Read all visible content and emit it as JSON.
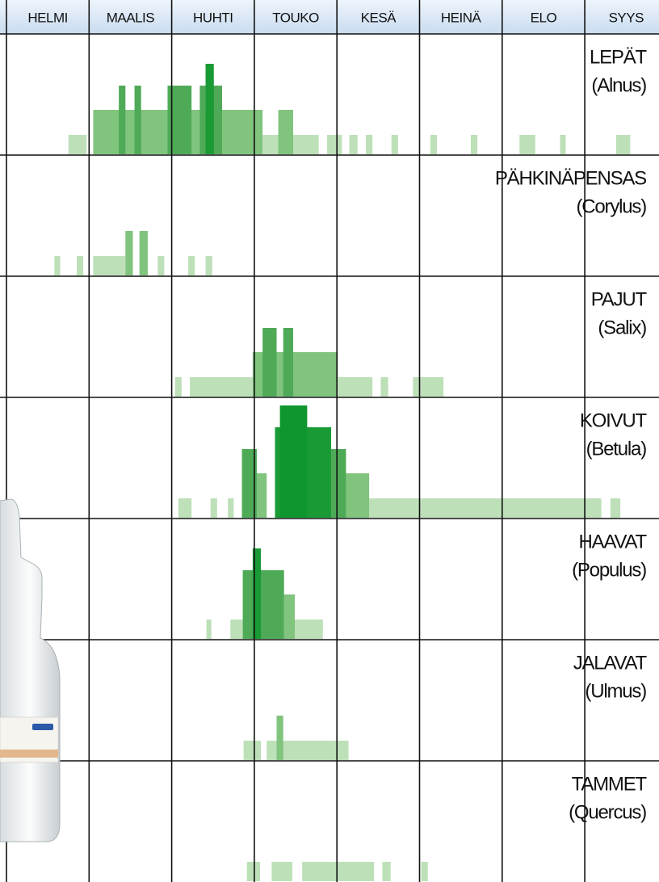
{
  "chart_data": {
    "type": "pollen-calendar",
    "categories": [
      "HELMI",
      "MAALIS",
      "HUHTI",
      "TOUKO",
      "KESÄ",
      "HEINÄ",
      "ELO",
      "SYYS"
    ],
    "level_colors": [
      "#bde0b8",
      "#80c47e",
      "#4faa57",
      "#1a9a35",
      "#10962e"
    ],
    "series": [
      {
        "name": "LEPÄT",
        "latin": "(Alnus)",
        "blocks": [
          {
            "start": 0.75,
            "end": 0.97,
            "level": 1
          },
          {
            "start": 1.05,
            "end": 3.1,
            "level": 2
          },
          {
            "start": 1.36,
            "end": 1.44,
            "level": 3
          },
          {
            "start": 1.55,
            "end": 1.63,
            "level": 3
          },
          {
            "start": 1.95,
            "end": 2.24,
            "level": 3
          },
          {
            "start": 2.34,
            "end": 2.61,
            "level": 3
          },
          {
            "start": 2.41,
            "end": 2.51,
            "level": 4
          },
          {
            "start": 3.1,
            "end": 3.49,
            "level": 1
          },
          {
            "start": 3.29,
            "end": 3.47,
            "level": 2
          },
          {
            "start": 3.49,
            "end": 3.78,
            "level": 1
          },
          {
            "start": 3.88,
            "end": 4.06,
            "level": 1
          },
          {
            "start": 4.15,
            "end": 4.25,
            "level": 1
          },
          {
            "start": 4.35,
            "end": 4.43,
            "level": 1
          },
          {
            "start": 4.66,
            "end": 4.74,
            "level": 1
          },
          {
            "start": 5.13,
            "end": 5.21,
            "level": 1
          },
          {
            "start": 5.62,
            "end": 5.7,
            "level": 1
          },
          {
            "start": 6.21,
            "end": 6.4,
            "level": 1
          },
          {
            "start": 6.7,
            "end": 6.77,
            "level": 1
          },
          {
            "start": 7.38,
            "end": 7.55,
            "level": 1
          }
        ]
      },
      {
        "name": "PÄHKINÄPENSAS",
        "latin": "(Corylus)",
        "blocks": [
          {
            "start": 0.58,
            "end": 0.65,
            "level": 1
          },
          {
            "start": 0.85,
            "end": 0.93,
            "level": 1
          },
          {
            "start": 1.05,
            "end": 1.44,
            "level": 1
          },
          {
            "start": 1.44,
            "end": 1.53,
            "level": 2
          },
          {
            "start": 1.61,
            "end": 1.71,
            "level": 2
          },
          {
            "start": 1.83,
            "end": 1.91,
            "level": 1
          },
          {
            "start": 2.2,
            "end": 2.28,
            "level": 1
          },
          {
            "start": 2.41,
            "end": 2.49,
            "level": 1
          }
        ]
      },
      {
        "name": "PAJUT",
        "latin": "(Salix)",
        "blocks": [
          {
            "start": 2.04,
            "end": 2.12,
            "level": 1
          },
          {
            "start": 2.22,
            "end": 2.98,
            "level": 1
          },
          {
            "start": 2.98,
            "end": 4.01,
            "level": 2
          },
          {
            "start": 3.1,
            "end": 3.27,
            "level": 3
          },
          {
            "start": 3.35,
            "end": 3.47,
            "level": 3
          },
          {
            "start": 4.01,
            "end": 4.43,
            "level": 1
          },
          {
            "start": 4.53,
            "end": 4.62,
            "level": 1
          },
          {
            "start": 4.92,
            "end": 5.29,
            "level": 1
          }
        ]
      },
      {
        "name": "KOIVUT",
        "latin": "(Betula)",
        "blocks": [
          {
            "start": 2.08,
            "end": 2.24,
            "level": 1
          },
          {
            "start": 2.47,
            "end": 2.55,
            "level": 1
          },
          {
            "start": 2.68,
            "end": 2.75,
            "level": 1
          },
          {
            "start": 4.39,
            "end": 7.2,
            "level": 1
          },
          {
            "start": 7.31,
            "end": 7.43,
            "level": 1
          },
          {
            "start": 3.03,
            "end": 3.15,
            "level": 2
          },
          {
            "start": 4.11,
            "end": 4.39,
            "level": 2
          },
          {
            "start": 2.85,
            "end": 3.03,
            "level": 3
          },
          {
            "start": 3.93,
            "end": 4.11,
            "level": 3
          },
          {
            "start": 3.25,
            "end": 3.93,
            "level": 4
          },
          {
            "start": 3.31,
            "end": 3.64,
            "level": 5
          }
        ]
      },
      {
        "name": "HAAVAT",
        "latin": "(Populus)",
        "blocks": [
          {
            "start": 2.42,
            "end": 2.48,
            "level": 1
          },
          {
            "start": 2.71,
            "end": 2.86,
            "level": 1
          },
          {
            "start": 3.49,
            "end": 3.83,
            "level": 1
          },
          {
            "start": 3.36,
            "end": 3.49,
            "level": 2
          },
          {
            "start": 2.86,
            "end": 3.36,
            "level": 3
          },
          {
            "start": 2.98,
            "end": 3.08,
            "level": 4
          }
        ]
      },
      {
        "name": "JALAVAT",
        "latin": "(Ulmus)",
        "blocks": [
          {
            "start": 2.87,
            "end": 3.08,
            "level": 1
          },
          {
            "start": 3.15,
            "end": 4.14,
            "level": 1
          },
          {
            "start": 3.27,
            "end": 3.35,
            "level": 2
          }
        ]
      },
      {
        "name": "TAMMET",
        "latin": "(Quercus)",
        "blocks": [
          {
            "start": 2.91,
            "end": 3.07,
            "level": 1
          },
          {
            "start": 3.21,
            "end": 3.46,
            "level": 1
          },
          {
            "start": 3.58,
            "end": 4.45,
            "level": 1
          },
          {
            "start": 4.55,
            "end": 4.65,
            "level": 1
          },
          {
            "start": 5.02,
            "end": 5.1,
            "level": 1
          }
        ]
      }
    ]
  }
}
